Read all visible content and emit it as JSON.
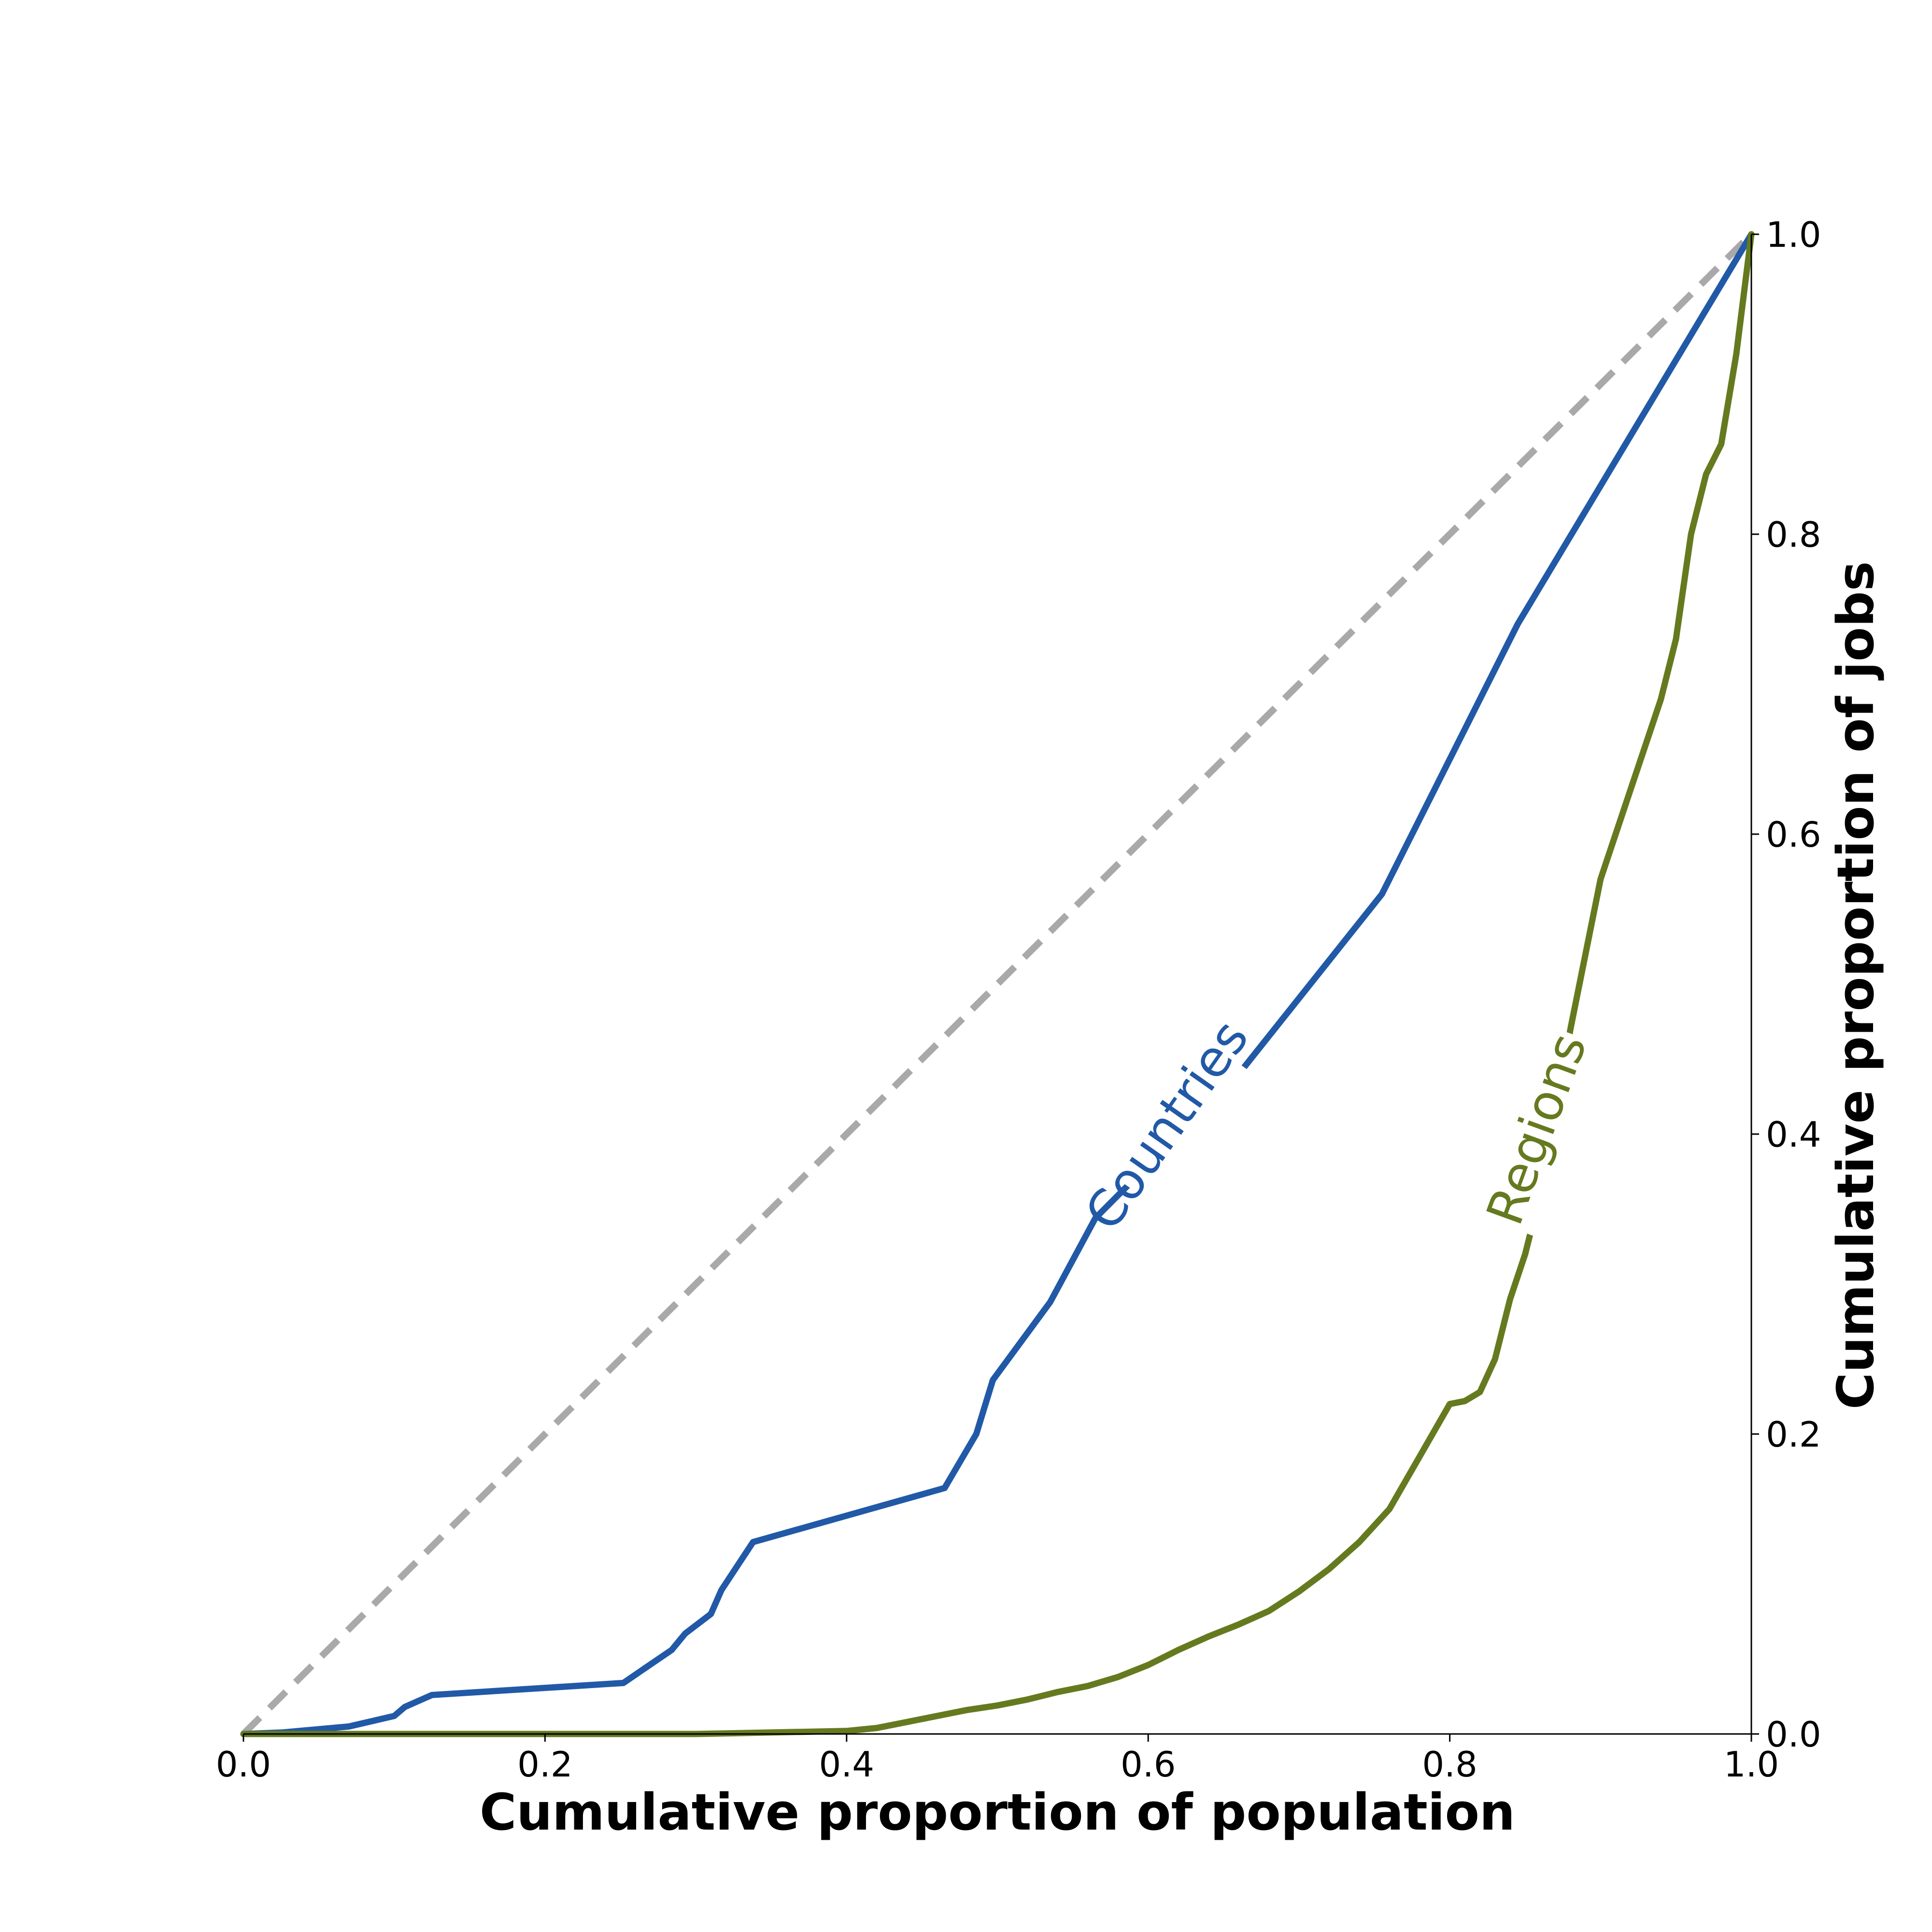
{
  "chart_data": {
    "type": "line",
    "title": "",
    "xlabel": "Cumulative proportion of population",
    "ylabel": "Cumulative proportion of jobs",
    "xlim": [
      0,
      1
    ],
    "ylim": [
      0,
      1
    ],
    "y_axis_side": "right",
    "grid": false,
    "legend": "none (inline labels)",
    "x_ticks": [
      "0.0",
      "0.2",
      "0.4",
      "0.6",
      "0.8",
      "1.0"
    ],
    "y_ticks": [
      "0.0",
      "0.2",
      "0.4",
      "0.6",
      "0.8",
      "1.0"
    ],
    "reference_line": {
      "style": "dashed",
      "color": "#a9a9a9",
      "x": [
        0,
        1
      ],
      "y": [
        0,
        1
      ]
    },
    "series": [
      {
        "name": "Countries",
        "color": "#2159a7",
        "x": [
          0.0,
          0.026,
          0.07,
          0.1,
          0.107,
          0.125,
          0.252,
          0.265,
          0.284,
          0.293,
          0.31,
          0.317,
          0.338,
          0.465,
          0.486,
          0.497,
          0.535,
          0.565,
          0.66,
          0.755,
          0.845,
          1.0
        ],
        "y": [
          0.0,
          0.001,
          0.005,
          0.012,
          0.018,
          0.026,
          0.034,
          0.043,
          0.056,
          0.067,
          0.08,
          0.096,
          0.128,
          0.164,
          0.2,
          0.236,
          0.288,
          0.344,
          0.44,
          0.56,
          0.74,
          1.0
        ]
      },
      {
        "name": "Regions",
        "color": "#657a1f",
        "x": [
          0.0,
          0.3,
          0.35,
          0.4,
          0.42,
          0.44,
          0.46,
          0.48,
          0.5,
          0.52,
          0.54,
          0.56,
          0.58,
          0.6,
          0.62,
          0.64,
          0.66,
          0.68,
          0.7,
          0.72,
          0.74,
          0.76,
          0.78,
          0.8,
          0.81,
          0.82,
          0.83,
          0.84,
          0.85,
          0.86,
          0.87,
          0.88,
          0.89,
          0.9,
          0.91,
          0.92,
          0.93,
          0.94,
          0.95,
          0.96,
          0.97,
          0.98,
          0.99,
          1.0
        ],
        "y": [
          0.0,
          0.0,
          0.001,
          0.002,
          0.004,
          0.008,
          0.012,
          0.016,
          0.019,
          0.023,
          0.028,
          0.032,
          0.038,
          0.046,
          0.056,
          0.065,
          0.073,
          0.082,
          0.095,
          0.11,
          0.128,
          0.15,
          0.185,
          0.22,
          0.222,
          0.228,
          0.25,
          0.29,
          0.32,
          0.36,
          0.41,
          0.47,
          0.52,
          0.57,
          0.6,
          0.63,
          0.66,
          0.69,
          0.73,
          0.8,
          0.84,
          0.86,
          0.92,
          1.0
        ]
      }
    ]
  }
}
